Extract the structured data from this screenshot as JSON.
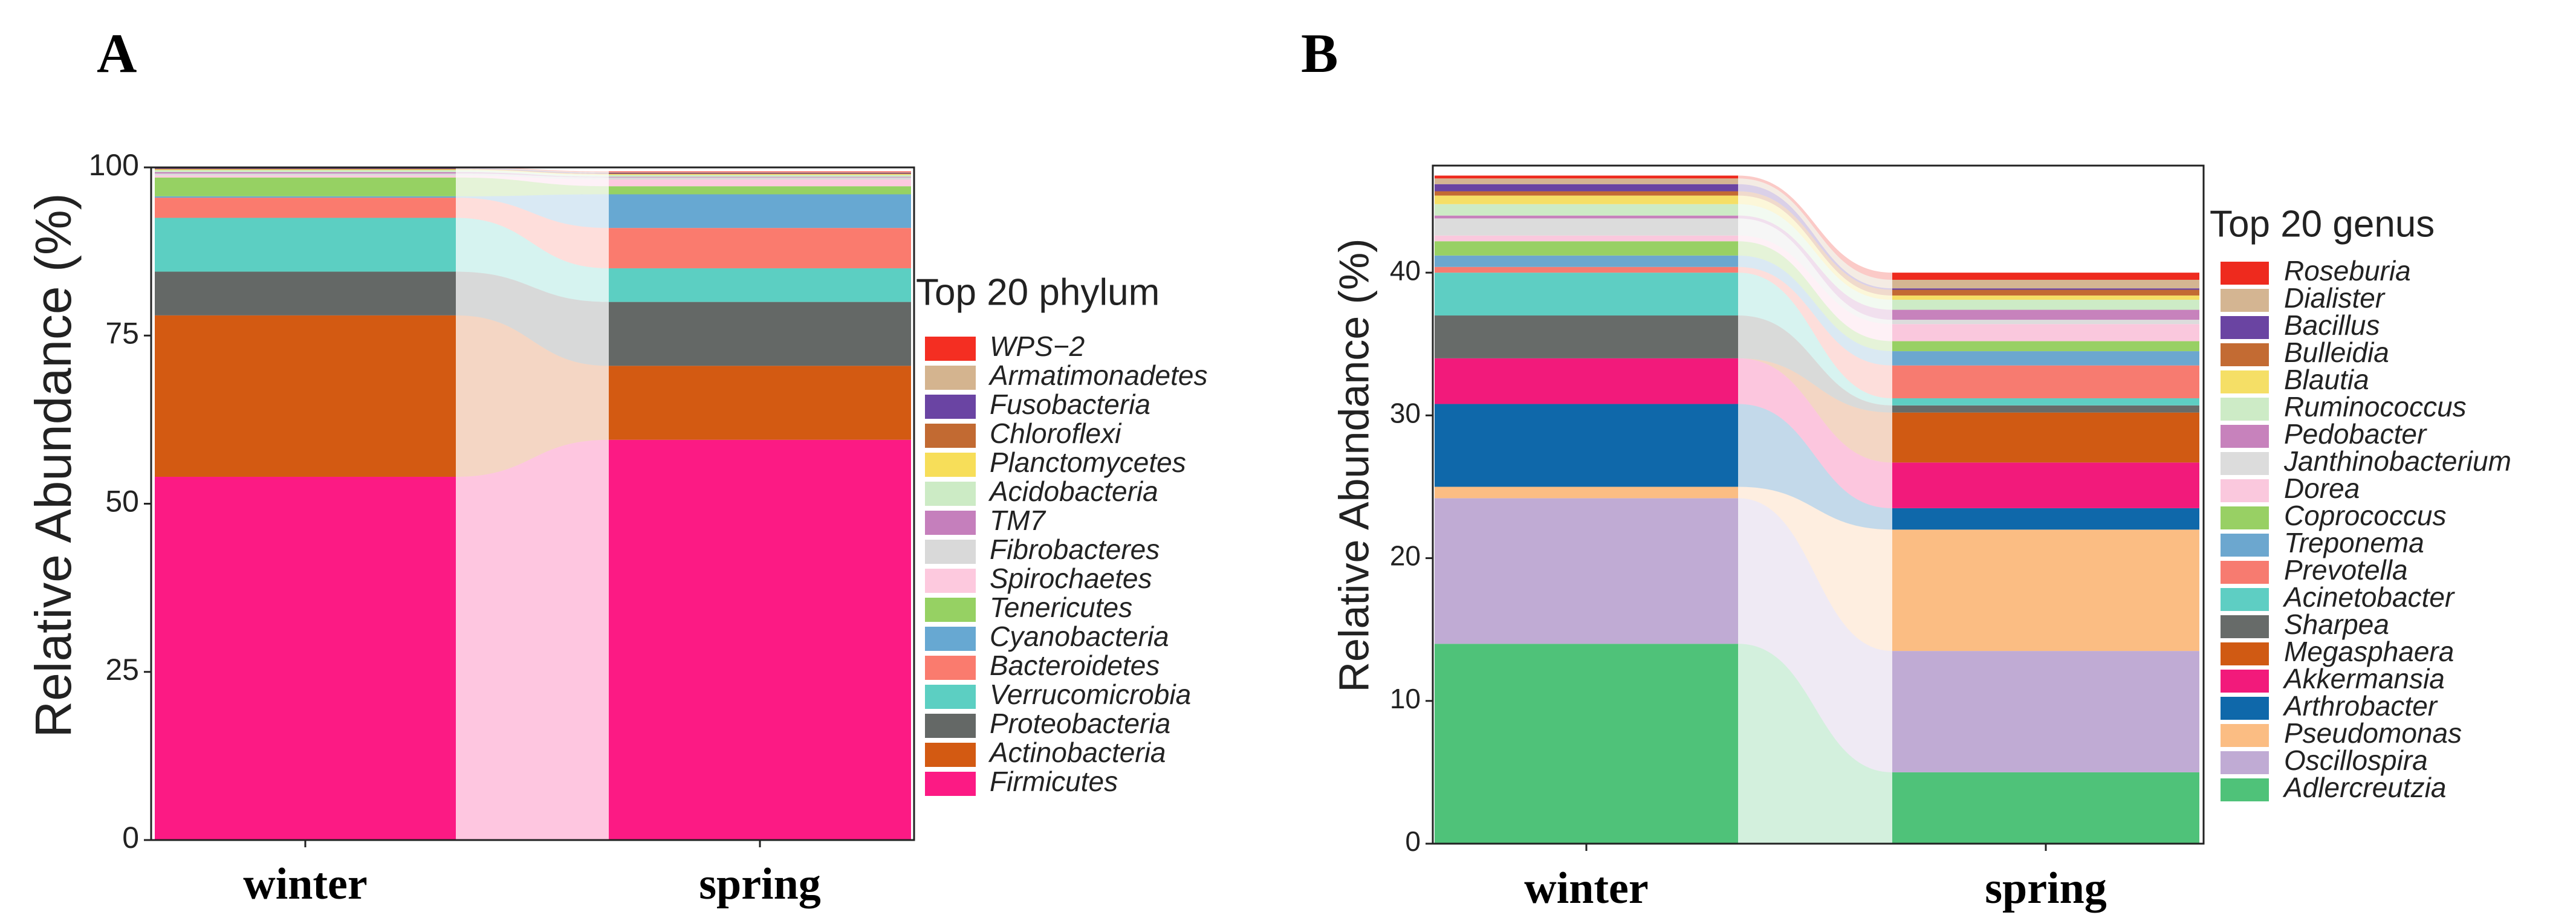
{
  "chart_data": [
    {
      "type": "stacked-bar-alluvial",
      "panel_label": "A",
      "ylabel": "Relative Abundance (%)",
      "ylim": [
        0,
        100
      ],
      "yticks": [
        0,
        25,
        50,
        75,
        100
      ],
      "categories": [
        "winter",
        "spring"
      ],
      "legend_title": "Top 20 phylum",
      "series": [
        {
          "name": "Firmicutes",
          "color": "#FC1A84",
          "values": [
            54.0,
            59.5
          ]
        },
        {
          "name": "Actinobacteria",
          "color": "#D35A12",
          "values": [
            24.0,
            11.0
          ]
        },
        {
          "name": "Proteobacteria",
          "color": "#646866",
          "values": [
            6.5,
            9.5
          ]
        },
        {
          "name": "Verrucomicrobia",
          "color": "#5CCFC2",
          "values": [
            8.0,
            5.0
          ]
        },
        {
          "name": "Bacteroidetes",
          "color": "#FA7B6E",
          "values": [
            3.0,
            6.0
          ]
        },
        {
          "name": "Cyanobacteria",
          "color": "#67A8D2",
          "values": [
            0.2,
            5.0
          ]
        },
        {
          "name": "Tenericutes",
          "color": "#96D163",
          "values": [
            2.8,
            1.2
          ]
        },
        {
          "name": "Spirochaetes",
          "color": "#FDC9DE",
          "values": [
            0.3,
            1.0
          ]
        },
        {
          "name": "Fibrobacteres",
          "color": "#D9D9D9",
          "values": [
            0.3,
            0.3
          ]
        },
        {
          "name": "TM7",
          "color": "#C57FBC",
          "values": [
            0.2,
            0.1
          ]
        },
        {
          "name": "Acidobacteria",
          "color": "#CCEBC5",
          "values": [
            0.3,
            0.3
          ]
        },
        {
          "name": "Planctomycetes",
          "color": "#F7DE59",
          "values": [
            0.1,
            0.1
          ]
        },
        {
          "name": "Chloroflexi",
          "color": "#C26A32",
          "values": [
            0.1,
            0.1
          ]
        },
        {
          "name": "Fusobacteria",
          "color": "#6A44A3",
          "values": [
            0.1,
            0.1
          ]
        },
        {
          "name": "Armatimonadetes",
          "color": "#D4B48F",
          "values": [
            0.1,
            0.1
          ]
        },
        {
          "name": "WPS−2",
          "color": "#F42E22",
          "values": [
            0.1,
            0.1
          ]
        }
      ]
    },
    {
      "type": "stacked-bar-alluvial",
      "panel_label": "B",
      "ylabel": "Relative Abundance (%)",
      "ylim": [
        0,
        47.5
      ],
      "yticks": [
        0,
        10,
        20,
        30,
        40
      ],
      "categories": [
        "winter",
        "spring"
      ],
      "legend_title": "Top 20 genus",
      "series": [
        {
          "name": "Adlercreutzia",
          "color": "#4FC279",
          "values": [
            14.0,
            5.0
          ]
        },
        {
          "name": "Oscillospira",
          "color": "#C0ABD4",
          "values": [
            10.2,
            8.5
          ]
        },
        {
          "name": "Pseudomonas",
          "color": "#FBBD83",
          "values": [
            0.8,
            8.5
          ]
        },
        {
          "name": "Arthrobacter",
          "color": "#0F68AA",
          "values": [
            5.8,
            1.5
          ]
        },
        {
          "name": "Akkermansia",
          "color": "#F21A7B",
          "values": [
            3.2,
            3.2
          ]
        },
        {
          "name": "Megasphaera",
          "color": "#D05A13",
          "values": [
            0.0,
            3.5
          ]
        },
        {
          "name": "Sharpea",
          "color": "#676B69",
          "values": [
            3.0,
            0.5
          ]
        },
        {
          "name": "Acinetobacter",
          "color": "#5ECEC3",
          "values": [
            3.0,
            0.5
          ]
        },
        {
          "name": "Prevotella",
          "color": "#F77B70",
          "values": [
            0.4,
            2.3
          ]
        },
        {
          "name": "Treponema",
          "color": "#6CA7CF",
          "values": [
            0.8,
            1.0
          ]
        },
        {
          "name": "Coprococcus",
          "color": "#98D064",
          "values": [
            1.0,
            0.7
          ]
        },
        {
          "name": "Dorea",
          "color": "#FAC8DD",
          "values": [
            0.4,
            1.2
          ]
        },
        {
          "name": "Janthinobacterium",
          "color": "#DCDCDC",
          "values": [
            1.2,
            0.3
          ]
        },
        {
          "name": "Pedobacter",
          "color": "#C782BC",
          "values": [
            0.2,
            0.7
          ]
        },
        {
          "name": "Ruminococcus",
          "color": "#CDEBC6",
          "values": [
            0.8,
            0.7
          ]
        },
        {
          "name": "Blautia",
          "color": "#F5DF66",
          "values": [
            0.6,
            0.3
          ]
        },
        {
          "name": "Bulleidia",
          "color": "#C36B33",
          "values": [
            0.3,
            0.4
          ]
        },
        {
          "name": "Bacillus",
          "color": "#6A44A2",
          "values": [
            0.5,
            0.1
          ]
        },
        {
          "name": "Dialister",
          "color": "#D4B592",
          "values": [
            0.4,
            0.6
          ]
        },
        {
          "name": "Roseburia",
          "color": "#EE2A1E",
          "values": [
            0.2,
            0.5
          ]
        }
      ]
    }
  ]
}
